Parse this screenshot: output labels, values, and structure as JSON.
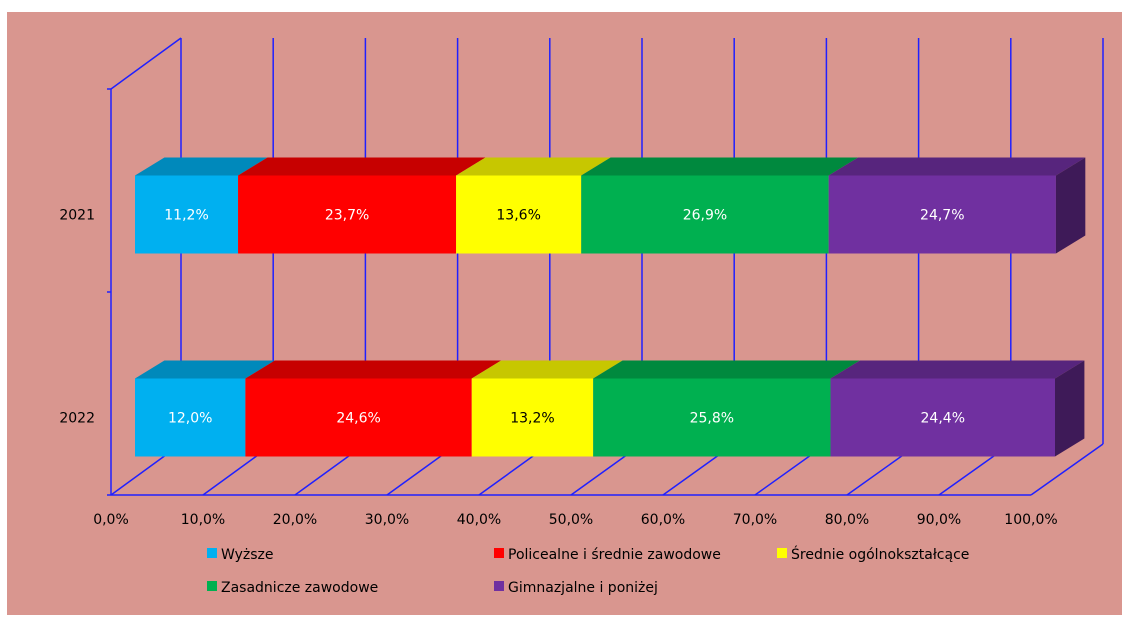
{
  "chart_data": {
    "type": "bar",
    "orientation": "horizontal",
    "stacked": "100%",
    "three_d": true,
    "categories": [
      "2021",
      "2022"
    ],
    "series": [
      {
        "name": "Wyższe",
        "color": "#00b0f0",
        "values": [
          11.2,
          12.0
        ],
        "labels": [
          "11,2%",
          "12,0%"
        ]
      },
      {
        "name": "Policealne i średnie zawodowe",
        "color": "#ff0000",
        "values": [
          23.7,
          24.6
        ],
        "labels": [
          "23,7%",
          "24,6%"
        ]
      },
      {
        "name": "Średnie ogólnokształcące",
        "color": "#ffff00",
        "values": [
          13.6,
          13.2
        ],
        "labels": [
          "13,6%",
          "13,2%"
        ]
      },
      {
        "name": "Zasadnicze zawodowe",
        "color": "#00b050",
        "values": [
          26.9,
          25.8
        ],
        "labels": [
          "26,9%",
          "25,8%"
        ]
      },
      {
        "name": "Gimnazjalne i poniżej",
        "color": "#7030a0",
        "values": [
          24.7,
          24.4
        ],
        "labels": [
          "24,7%",
          "24,4%"
        ]
      }
    ],
    "x_ticks": [
      "0,0%",
      "10,0%",
      "20,0%",
      "30,0%",
      "40,0%",
      "50,0%",
      "60,0%",
      "70,0%",
      "80,0%",
      "90,0%",
      "100,0%"
    ],
    "xlim": [
      0,
      100
    ],
    "grid": true,
    "legend_position": "bottom",
    "background_color": "#d9968f",
    "gridline_color": "#2020ff"
  }
}
